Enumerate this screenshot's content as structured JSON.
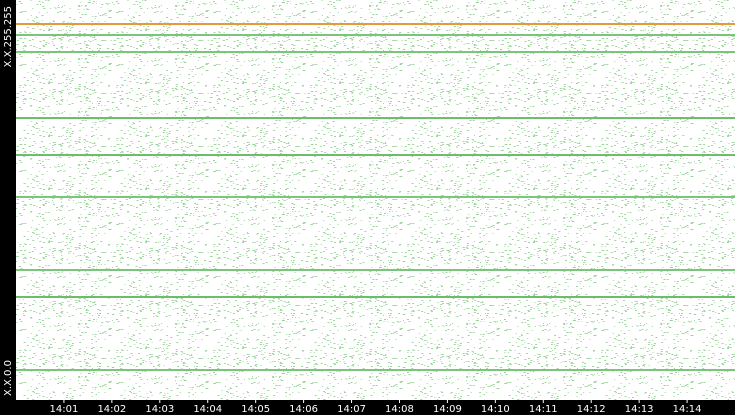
{
  "chart_data": {
    "type": "address-time-map",
    "ylim": [
      0,
      65535
    ],
    "yticks": [
      {
        "value": 0,
        "label": "X.X.0.0"
      },
      {
        "value": 65535,
        "label": "X.X.255.255"
      }
    ],
    "xlim": [
      "14:00",
      "14:15"
    ],
    "xticks": [
      "14:01",
      "14:02",
      "14:03",
      "14:04",
      "14:05",
      "14:06",
      "14:07",
      "14:08",
      "14:09",
      "14:10",
      "14:11",
      "14:12",
      "14:13",
      "14:14"
    ],
    "lines": [
      {
        "y": 61911,
        "color": "#e39a3a"
      },
      {
        "y": 60100,
        "color": "#7cc47c"
      },
      {
        "y": 57300,
        "color": "#7cc47c"
      },
      {
        "y": 46430,
        "color": "#6dbb6d"
      },
      {
        "y": 40340,
        "color": "#6dbb6d"
      },
      {
        "y": 33430,
        "color": "#7cc47c"
      },
      {
        "y": 21405,
        "color": "#7cc47c"
      },
      {
        "y": 16960,
        "color": "#6dbb6d"
      },
      {
        "y": 4940,
        "color": "#7cc47c"
      }
    ],
    "dot_color": "#8fcf8f"
  }
}
